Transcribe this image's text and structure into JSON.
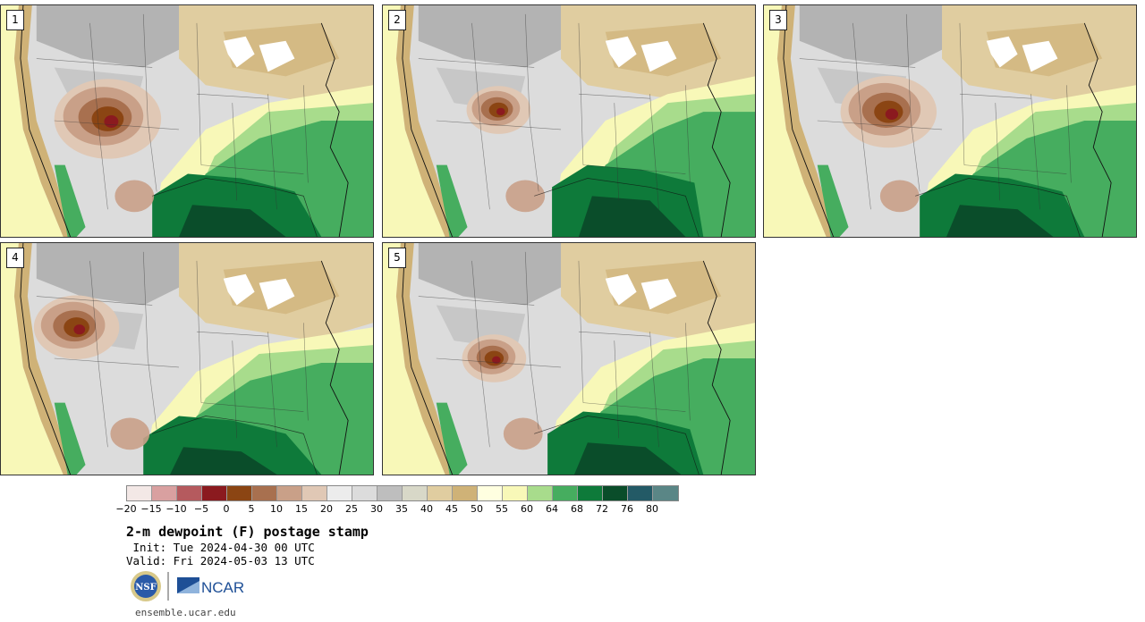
{
  "panels": [
    {
      "number": "1"
    },
    {
      "number": "2"
    },
    {
      "number": "3"
    },
    {
      "number": "4"
    },
    {
      "number": "5"
    }
  ],
  "legend": {
    "colors": [
      "#f3e8e6",
      "#d9a0a0",
      "#b55a5e",
      "#8b1a1f",
      "#8b4513",
      "#a8704f",
      "#c9a088",
      "#e0c8b5",
      "#ececec",
      "#dcdcdc",
      "#bebebe",
      "#d8d8c8",
      "#e0cda0",
      "#cfb277",
      "#ffffe0",
      "#f8f8b8",
      "#a8dc8c",
      "#46ad5f",
      "#0e7a3a",
      "#0a4d2a",
      "#235a66",
      "#5a8686"
    ],
    "tick_labels": [
      "-20",
      "-15",
      "-10",
      "-5",
      "0",
      "5",
      "10",
      "15",
      "20",
      "25",
      "30",
      "35",
      "40",
      "45",
      "50",
      "55",
      "60",
      "64",
      "68",
      "72",
      "76",
      "80"
    ]
  },
  "title": "2-m dewpoint (F) postage stamp",
  "init_line": " Init: Tue 2024-04-30 00 UTC",
  "valid_line": "Valid: Fri 2024-05-03 13 UTC",
  "logos": {
    "nsf": "NSF",
    "ncar": "NCAR"
  },
  "footer": "ensemble.ucar.edu"
}
